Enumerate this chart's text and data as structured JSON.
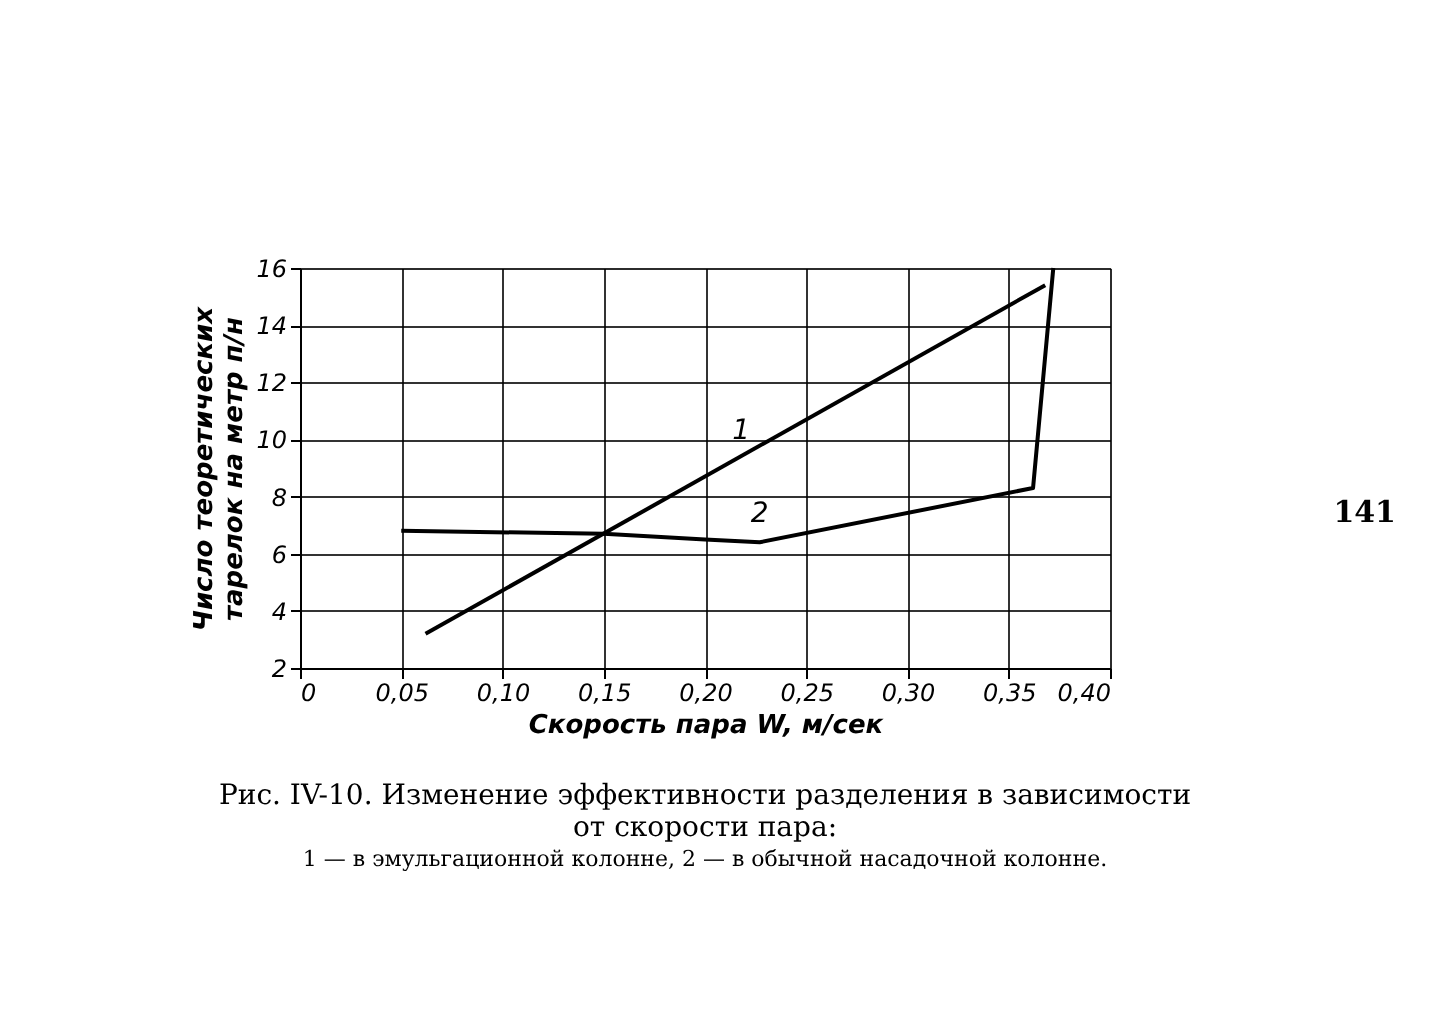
{
  "chart_data": {
    "type": "line",
    "title": "Рис. IV-10. Изменение эффективности разделения в зависимости\nот скорости пара:",
    "subtitle": "1 — в эмульгационной колонне, 2 — в обычной насадочной колонне.",
    "xlabel": "Скорость пара W, м/сек",
    "ylabel": "Число теоретических\nтарелок на метр п/н",
    "annotations": [
      "141"
    ],
    "series": [
      {
        "name": "1",
        "color": "#000000",
        "x": [
          0.062,
          0.368
        ],
        "values": [
          3.2,
          15.4
        ]
      },
      {
        "name": "2",
        "color": "#000000",
        "x": [
          0.05,
          0.15,
          0.2,
          0.227,
          0.362,
          0.372
        ],
        "values": [
          6.8,
          6.7,
          6.5,
          6.4,
          8.3,
          16
        ]
      }
    ],
    "xlim": [
      0,
      0.4
    ],
    "xticks": [
      0,
      {
        "value": 0.05,
        "label": "0,05"
      },
      {
        "value": 0.1,
        "label": "0,10"
      },
      {
        "value": 0.15,
        "label": "0,15"
      },
      {
        "value": 0.2,
        "label": "0,20"
      },
      {
        "value": 0.25,
        "label": "0,25"
      },
      {
        "value": 0.3,
        "label": "0,30"
      },
      {
        "value": 0.35,
        "label": "0,35"
      },
      {
        "value": 0.4,
        "label": "0,40"
      }
    ],
    "ylim": [
      2,
      16
    ],
    "yticks": [
      2,
      4,
      6,
      8,
      10,
      12,
      14,
      16
    ],
    "grid": true,
    "marker": "none",
    "line_style": "solid"
  }
}
